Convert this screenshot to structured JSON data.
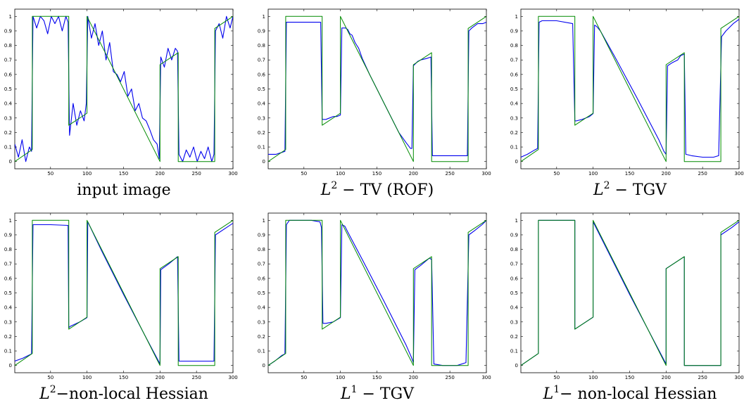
{
  "colors": {
    "estimate": "#0000ee",
    "ground_truth": "#008a00",
    "axes": "#000000"
  },
  "chart_data": [
    {
      "type": "line",
      "caption": "input image",
      "xlim": [
        1,
        300
      ],
      "ylim": [
        -0.05,
        1.05
      ],
      "xticks": [
        "50",
        "100",
        "150",
        "200",
        "250",
        "300"
      ],
      "yticks": [
        "0",
        "0.1",
        "0.2",
        "0.3",
        "0.4",
        "0.5",
        "0.6",
        "0.7",
        "0.8",
        "0.9",
        "1"
      ],
      "grid": false,
      "series": [
        {
          "role": "noisy-input",
          "color": "#0000ee",
          "x": [
            1,
            6,
            11,
            16,
            21,
            24,
            26,
            31,
            36,
            41,
            46,
            51,
            56,
            61,
            66,
            71,
            74,
            76,
            81,
            86,
            91,
            96,
            99,
            101,
            106,
            111,
            116,
            121,
            126,
            131,
            136,
            141,
            146,
            151,
            156,
            161,
            166,
            171,
            176,
            181,
            186,
            191,
            196,
            199,
            201,
            206,
            211,
            216,
            221,
            224,
            226,
            231,
            236,
            241,
            246,
            251,
            256,
            261,
            266,
            271,
            274,
            276,
            281,
            286,
            291,
            296,
            300
          ],
          "y": [
            0.12,
            0.03,
            0.15,
            0.0,
            0.1,
            0.07,
            1.0,
            0.92,
            1.0,
            0.97,
            0.88,
            1.0,
            0.95,
            1.0,
            0.9,
            1.0,
            0.96,
            0.18,
            0.4,
            0.25,
            0.35,
            0.28,
            0.4,
            1.0,
            0.85,
            0.95,
            0.8,
            0.9,
            0.7,
            0.82,
            0.62,
            0.6,
            0.55,
            0.62,
            0.45,
            0.5,
            0.35,
            0.4,
            0.3,
            0.28,
            0.22,
            0.15,
            0.12,
            0.02,
            0.72,
            0.65,
            0.78,
            0.7,
            0.78,
            0.76,
            0.05,
            0.0,
            0.08,
            0.03,
            0.1,
            0.0,
            0.07,
            0.02,
            0.1,
            0.0,
            0.05,
            0.9,
            0.95,
            0.85,
            1.0,
            0.92,
            1.0
          ]
        },
        {
          "role": "ground-truth",
          "color": "#008a00",
          "x": [
            1,
            25,
            25,
            75,
            75,
            100,
            100,
            200,
            200,
            225,
            225,
            275,
            275,
            300
          ],
          "y": [
            0.0,
            0.083,
            1.0,
            1.0,
            0.25,
            0.333,
            1.0,
            0.0,
            0.667,
            0.75,
            0.0,
            0.0,
            0.917,
            1.0
          ]
        }
      ]
    },
    {
      "type": "line",
      "caption": "L^2 − TV (ROF)",
      "xlim": [
        1,
        300
      ],
      "ylim": [
        -0.05,
        1.05
      ],
      "xticks": [
        "50",
        "100",
        "150",
        "200",
        "250",
        "300"
      ],
      "yticks": [
        "0",
        "0.1",
        "0.2",
        "0.3",
        "0.4",
        "0.5",
        "0.6",
        "0.7",
        "0.8",
        "0.9",
        "1"
      ],
      "grid": false,
      "series": [
        {
          "role": "reconstruction",
          "color": "#0000ee",
          "x": [
            1,
            12,
            18,
            24,
            26,
            30,
            73,
            75,
            77,
            80,
            85,
            90,
            95,
            100,
            102,
            107,
            110,
            113,
            116,
            120,
            125,
            130,
            140,
            150,
            160,
            170,
            180,
            190,
            196,
            198,
            200,
            202,
            206,
            210,
            218,
            224,
            226,
            230,
            274,
            276,
            280,
            288,
            295,
            300
          ],
          "y": [
            0.05,
            0.05,
            0.06,
            0.07,
            0.96,
            0.96,
            0.96,
            0.29,
            0.29,
            0.29,
            0.3,
            0.31,
            0.31,
            0.32,
            0.92,
            0.92,
            0.91,
            0.88,
            0.87,
            0.82,
            0.78,
            0.71,
            0.6,
            0.5,
            0.4,
            0.3,
            0.2,
            0.13,
            0.09,
            0.09,
            0.66,
            0.67,
            0.69,
            0.7,
            0.71,
            0.72,
            0.04,
            0.04,
            0.04,
            0.9,
            0.92,
            0.95,
            0.95,
            0.96
          ]
        },
        {
          "role": "ground-truth",
          "color": "#008a00",
          "x": [
            1,
            25,
            25,
            75,
            75,
            100,
            100,
            200,
            200,
            225,
            225,
            275,
            275,
            300
          ],
          "y": [
            0.0,
            0.083,
            1.0,
            1.0,
            0.25,
            0.333,
            1.0,
            0.0,
            0.667,
            0.75,
            0.0,
            0.0,
            0.917,
            1.0
          ]
        }
      ]
    },
    {
      "type": "line",
      "caption": "L^2 − TGV",
      "xlim": [
        1,
        300
      ],
      "ylim": [
        -0.05,
        1.05
      ],
      "xticks": [
        "50",
        "100",
        "150",
        "200",
        "250",
        "300"
      ],
      "yticks": [
        "0",
        "0.1",
        "0.2",
        "0.3",
        "0.4",
        "0.5",
        "0.6",
        "0.7",
        "0.8",
        "0.9",
        "1"
      ],
      "grid": false,
      "series": [
        {
          "role": "reconstruction",
          "color": "#0000ee",
          "x": [
            1,
            10,
            20,
            24,
            26,
            30,
            50,
            72,
            75,
            77,
            85,
            95,
            100,
            102,
            105,
            110,
            130,
            160,
            190,
            197,
            200,
            202,
            208,
            212,
            216,
            220,
            225,
            227,
            235,
            250,
            265,
            272,
            276,
            282,
            292,
            300
          ],
          "y": [
            0.03,
            0.05,
            0.08,
            0.09,
            0.96,
            0.97,
            0.97,
            0.95,
            0.28,
            0.28,
            0.29,
            0.31,
            0.33,
            0.94,
            0.93,
            0.9,
            0.72,
            0.44,
            0.15,
            0.07,
            0.05,
            0.66,
            0.68,
            0.69,
            0.7,
            0.73,
            0.74,
            0.05,
            0.04,
            0.03,
            0.03,
            0.04,
            0.86,
            0.9,
            0.95,
            0.98
          ]
        },
        {
          "role": "ground-truth",
          "color": "#008a00",
          "x": [
            1,
            25,
            25,
            75,
            75,
            100,
            100,
            200,
            200,
            225,
            225,
            275,
            275,
            300
          ],
          "y": [
            0.0,
            0.083,
            1.0,
            1.0,
            0.25,
            0.333,
            1.0,
            0.0,
            0.667,
            0.75,
            0.0,
            0.0,
            0.917,
            1.0
          ]
        }
      ]
    },
    {
      "type": "line",
      "caption": "L^2−non-local Hessian",
      "xlim": [
        1,
        300
      ],
      "ylim": [
        -0.05,
        1.05
      ],
      "xticks": [
        "50",
        "100",
        "150",
        "200",
        "250",
        "300"
      ],
      "yticks": [
        "0",
        "0.1",
        "0.2",
        "0.3",
        "0.4",
        "0.5",
        "0.6",
        "0.7",
        "0.8",
        "0.9",
        "1"
      ],
      "grid": false,
      "series": [
        {
          "role": "reconstruction",
          "color": "#0000ee",
          "x": [
            1,
            12,
            24,
            26,
            50,
            74,
            75,
            77,
            90,
            100,
            101,
            120,
            150,
            180,
            198,
            200,
            201,
            212,
            224,
            226,
            250,
            274,
            276,
            288,
            300
          ],
          "y": [
            0.03,
            0.05,
            0.08,
            0.97,
            0.97,
            0.965,
            0.26,
            0.27,
            0.3,
            0.33,
            0.99,
            0.79,
            0.49,
            0.2,
            0.03,
            0.01,
            0.66,
            0.7,
            0.75,
            0.03,
            0.03,
            0.03,
            0.9,
            0.94,
            0.98
          ]
        },
        {
          "role": "ground-truth",
          "color": "#008a00",
          "x": [
            1,
            25,
            25,
            75,
            75,
            100,
            100,
            200,
            200,
            225,
            225,
            275,
            275,
            300
          ],
          "y": [
            0.0,
            0.083,
            1.0,
            1.0,
            0.25,
            0.333,
            1.0,
            0.0,
            0.667,
            0.75,
            0.0,
            0.0,
            0.917,
            1.0
          ]
        }
      ]
    },
    {
      "type": "line",
      "caption": "L^1 − TGV",
      "xlim": [
        1,
        300
      ],
      "ylim": [
        -0.05,
        1.05
      ],
      "xticks": [
        "50",
        "100",
        "150",
        "200",
        "250",
        "300"
      ],
      "yticks": [
        "0",
        "0.1",
        "0.2",
        "0.3",
        "0.4",
        "0.5",
        "0.6",
        "0.7",
        "0.8",
        "0.9",
        "1"
      ],
      "grid": false,
      "series": [
        {
          "role": "reconstruction",
          "color": "#0000ee",
          "x": [
            1,
            10,
            20,
            24,
            26,
            30,
            60,
            72,
            74,
            76,
            80,
            90,
            100,
            102,
            106,
            110,
            130,
            160,
            190,
            197,
            200,
            202,
            210,
            222,
            225,
            228,
            240,
            260,
            272,
            276,
            284,
            294,
            300
          ],
          "y": [
            0.0,
            0.03,
            0.07,
            0.08,
            0.97,
            1.0,
            1.0,
            0.99,
            0.95,
            0.29,
            0.29,
            0.3,
            0.33,
            0.97,
            0.96,
            0.92,
            0.73,
            0.44,
            0.14,
            0.06,
            0.02,
            0.66,
            0.69,
            0.74,
            0.73,
            0.01,
            0.0,
            0.0,
            0.02,
            0.9,
            0.93,
            0.97,
            1.0
          ]
        },
        {
          "role": "ground-truth",
          "color": "#008a00",
          "x": [
            1,
            25,
            25,
            75,
            75,
            100,
            100,
            200,
            200,
            225,
            225,
            275,
            275,
            300
          ],
          "y": [
            0.0,
            0.083,
            1.0,
            1.0,
            0.25,
            0.333,
            1.0,
            0.0,
            0.667,
            0.75,
            0.0,
            0.0,
            0.917,
            1.0
          ]
        }
      ]
    },
    {
      "type": "line",
      "caption": "L^1− non-local Hessian",
      "xlim": [
        1,
        300
      ],
      "ylim": [
        -0.05,
        1.05
      ],
      "xticks": [
        "50",
        "100",
        "150",
        "200",
        "250",
        "300"
      ],
      "yticks": [
        "0",
        "0.1",
        "0.2",
        "0.3",
        "0.4",
        "0.5",
        "0.6",
        "0.7",
        "0.8",
        "0.9",
        "1"
      ],
      "grid": false,
      "series": [
        {
          "role": "reconstruction",
          "color": "#0000ee",
          "x": [
            1,
            25,
            25,
            75,
            75,
            100,
            100,
            150,
            200,
            200,
            225,
            225,
            275,
            275,
            290,
            300
          ],
          "y": [
            0.0,
            0.083,
            1.0,
            1.0,
            0.25,
            0.333,
            0.99,
            0.49,
            0.01,
            0.667,
            0.75,
            0.0,
            0.0,
            0.9,
            0.95,
            0.99
          ]
        },
        {
          "role": "ground-truth",
          "color": "#008a00",
          "x": [
            1,
            25,
            25,
            75,
            75,
            100,
            100,
            200,
            200,
            225,
            225,
            275,
            275,
            300
          ],
          "y": [
            0.0,
            0.083,
            1.0,
            1.0,
            0.25,
            0.333,
            1.0,
            0.0,
            0.667,
            0.75,
            0.0,
            0.0,
            0.917,
            1.0
          ]
        }
      ]
    }
  ]
}
